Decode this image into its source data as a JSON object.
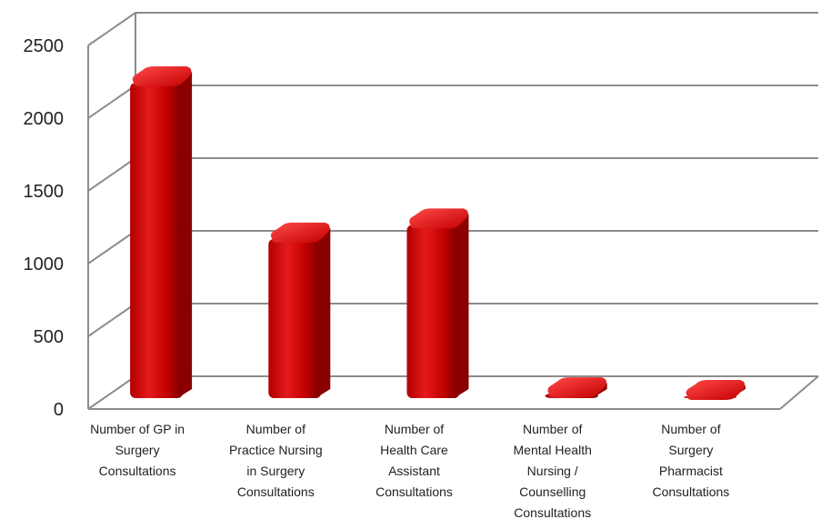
{
  "chart_data": {
    "type": "bar",
    "title": "",
    "xlabel": "",
    "ylabel": "",
    "categories": [
      "Number of GP in Surgery Consultations",
      "Number of Practice Nursing in Surgery Consultations",
      "Number of Health Care Assistant Consultations",
      "Number of Mental Health Nursing / Counselling Consultations",
      "Number of Surgery Pharmacist Consultations"
    ],
    "category_lines": [
      [
        "Number of GP in",
        "Surgery",
        "Consultations"
      ],
      [
        "Number of",
        "Practice Nursing",
        "in Surgery",
        "Consultations"
      ],
      [
        "Number of",
        "Health Care",
        "Assistant",
        "Consultations"
      ],
      [
        "Number of",
        "Mental Health",
        "Nursing /",
        "Counselling",
        "Consultations"
      ],
      [
        "Number of",
        "Surgery",
        "Pharmacist",
        "Consultations"
      ]
    ],
    "values": [
      2280,
      1170,
      1270,
      70,
      50
    ],
    "ylim": [
      0,
      2500
    ],
    "yticks": [
      0,
      500,
      1000,
      1500,
      2000,
      2500
    ],
    "grid": true,
    "legend": "none",
    "style": "3d-cylinder",
    "bar_color": "#c00000"
  }
}
